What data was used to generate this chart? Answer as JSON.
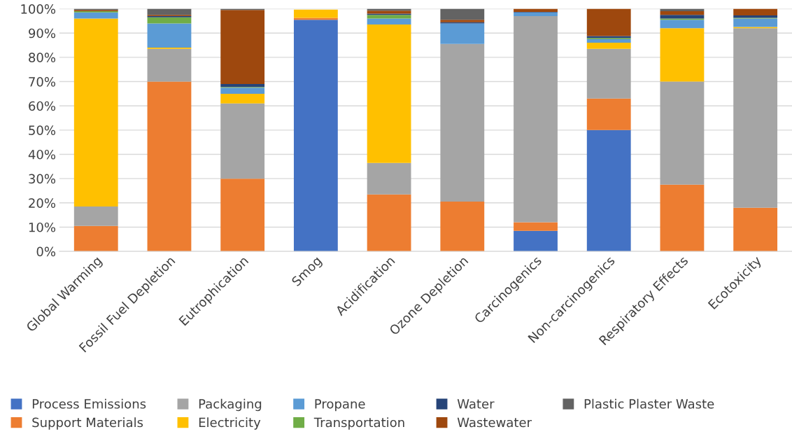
{
  "chart_data": {
    "type": "bar",
    "stacked": true,
    "grid": "y",
    "legend": "bottom",
    "categories": [
      "Global Warming",
      "Fossil Fuel Depletion",
      "Eutrophication",
      "Smog",
      "Acidification",
      "Ozone Depletion",
      "Carcinogenics",
      "Non-carcinogenics",
      "Respiratory Effects",
      "Ecotoxicity"
    ],
    "ylim": [
      0,
      100
    ],
    "yticks": [
      {
        "value": 0,
        "label": "0%"
      },
      {
        "value": 10,
        "label": "10%"
      },
      {
        "value": 20,
        "label": "20%"
      },
      {
        "value": 30,
        "label": "30%"
      },
      {
        "value": 40,
        "label": "40%"
      },
      {
        "value": 50,
        "label": "50%"
      },
      {
        "value": 60,
        "label": "60%"
      },
      {
        "value": 70,
        "label": "70%"
      },
      {
        "value": 80,
        "label": "80%"
      },
      {
        "value": 90,
        "label": "90%"
      },
      {
        "value": 100,
        "label": "100%"
      }
    ],
    "series": [
      {
        "name": "Process Emissions",
        "color": "#4472c4",
        "values": [
          0,
          0,
          0,
          95.5,
          0,
          0,
          8.5,
          50,
          0,
          0
        ]
      },
      {
        "name": "Support Materials",
        "color": "#ed7d31",
        "values": [
          10.5,
          70,
          30,
          0.8,
          23.5,
          20.5,
          3.5,
          13,
          27.5,
          18
        ]
      },
      {
        "name": "Packaging",
        "color": "#a5a5a5",
        "values": [
          8,
          13.5,
          31,
          null,
          13,
          65,
          85,
          20.5,
          42.5,
          74
        ]
      },
      {
        "name": "Electricity",
        "color": "#ffc000",
        "values": [
          77.5,
          0.5,
          4,
          3.4,
          57,
          0,
          0,
          2.5,
          22,
          0.5
        ]
      },
      {
        "name": "Propane",
        "color": "#5b9bd5",
        "values": [
          2.5,
          10,
          2.5,
          0,
          2.5,
          8.5,
          1.5,
          1.5,
          3.5,
          3.5
        ]
      },
      {
        "name": "Transportation",
        "color": "#70ad47",
        "values": [
          0.5,
          2.5,
          0.3,
          0,
          1.5,
          0,
          0,
          0.5,
          0.5,
          0.3
        ]
      },
      {
        "name": "Water",
        "color": "#264478",
        "values": [
          0,
          0.5,
          1.2,
          0,
          0.5,
          0.5,
          0.2,
          0.8,
          1.5,
          1
        ]
      },
      {
        "name": "Wastewater",
        "color": "#9e480e",
        "values": [
          0.5,
          0.5,
          30.5,
          0,
          1.2,
          1,
          1.3,
          11.2,
          1.5,
          2.7
        ]
      },
      {
        "name": "Plastic Plaster Waste",
        "color": "#636363",
        "values": [
          0.5,
          2.5,
          0.5,
          0,
          0.8,
          4.5,
          0,
          0,
          1,
          0
        ]
      }
    ]
  }
}
